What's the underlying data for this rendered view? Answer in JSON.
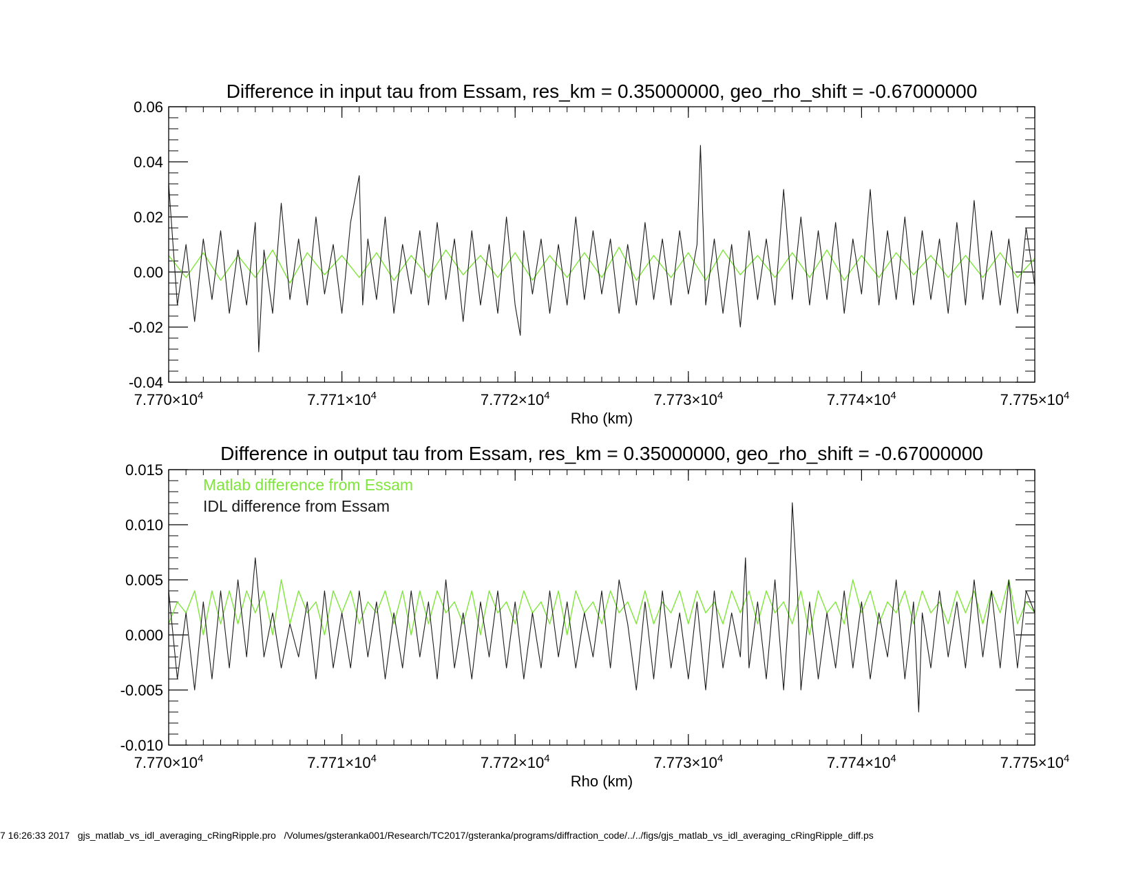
{
  "footer": "7 16:26:33 2017   gjs_matlab_vs_idl_averaging_cRingRipple.pro   /Volumes/gsteranka001/Research/TC2017/gsteranka/programs/diffraction_code/../../figs/gjs_matlab_vs_idl_averaging_cRingRipple_diff.ps",
  "colors": {
    "matlab": "#7ee639",
    "idl": "#1a1a1a",
    "axis": "#000000"
  },
  "chart_data": [
    {
      "type": "line",
      "title": "Difference in input tau from Essam, res_km = 0.35000000, geo_rho_shift = -0.67000000",
      "xlabel": "Rho (km)",
      "ylabel": "",
      "xlim": [
        77700,
        77750
      ],
      "ylim": [
        -0.04,
        0.06
      ],
      "xticks": [
        77700,
        77710,
        77720,
        77730,
        77740,
        77750
      ],
      "xtick_labels": [
        {
          "mant": "7.770×10",
          "exp": "4"
        },
        {
          "mant": "7.771×10",
          "exp": "4"
        },
        {
          "mant": "7.772×10",
          "exp": "4"
        },
        {
          "mant": "7.773×10",
          "exp": "4"
        },
        {
          "mant": "7.774×10",
          "exp": "4"
        },
        {
          "mant": "7.775×10",
          "exp": "4"
        }
      ],
      "yticks": [
        -0.04,
        -0.02,
        0.0,
        0.02,
        0.04,
        0.06
      ],
      "ytick_labels": [
        "-0.04",
        "-0.02",
        "0.00",
        "0.02",
        "0.04",
        "0.06"
      ],
      "legend": [],
      "series": [
        {
          "color_key": "idl",
          "x": [
            77700.0,
            77700.5,
            77701.0,
            77701.5,
            77702.0,
            77702.5,
            77703.0,
            77703.5,
            77704.0,
            77704.5,
            77705.0,
            77705.2,
            77705.5,
            77706.0,
            77706.5,
            77707.0,
            77707.5,
            77708.0,
            77708.5,
            77709.0,
            77709.5,
            77710.0,
            77710.5,
            77711.0,
            77711.2,
            77711.5,
            77712.0,
            77712.5,
            77713.0,
            77713.5,
            77714.0,
            77714.5,
            77715.0,
            77715.5,
            77716.0,
            77716.5,
            77717.0,
            77717.5,
            77718.0,
            77718.5,
            77719.0,
            77719.5,
            77720.0,
            77720.3,
            77720.5,
            77721.0,
            77721.5,
            77722.0,
            77722.5,
            77723.0,
            77723.5,
            77724.0,
            77724.5,
            77725.0,
            77725.5,
            77726.0,
            77726.5,
            77727.0,
            77727.5,
            77728.0,
            77728.5,
            77729.0,
            77729.5,
            77730.0,
            77730.5,
            77730.7,
            77731.0,
            77731.5,
            77732.0,
            77732.5,
            77733.0,
            77733.5,
            77734.0,
            77734.5,
            77735.0,
            77735.5,
            77736.0,
            77736.5,
            77737.0,
            77737.5,
            77738.0,
            77738.5,
            77739.0,
            77739.5,
            77740.0,
            77740.5,
            77741.0,
            77741.5,
            77742.0,
            77742.5,
            77743.0,
            77743.5,
            77744.0,
            77744.5,
            77745.0,
            77745.5,
            77746.0,
            77746.5,
            77747.0,
            77747.5,
            77748.0,
            77748.5,
            77749.0,
            77749.5,
            77750.0
          ],
          "y": [
            0.032,
            -0.012,
            0.01,
            -0.018,
            0.012,
            -0.01,
            0.015,
            -0.015,
            0.008,
            -0.012,
            0.018,
            -0.029,
            0.008,
            -0.015,
            0.025,
            -0.01,
            0.012,
            -0.012,
            0.02,
            -0.008,
            0.01,
            -0.015,
            0.018,
            0.035,
            -0.012,
            0.012,
            -0.01,
            0.02,
            -0.015,
            0.01,
            -0.008,
            0.015,
            -0.012,
            0.018,
            -0.01,
            0.012,
            -0.018,
            0.015,
            -0.012,
            0.01,
            -0.015,
            0.02,
            -0.012,
            -0.023,
            0.015,
            -0.008,
            0.012,
            -0.015,
            0.01,
            -0.012,
            0.02,
            -0.01,
            0.015,
            -0.008,
            0.012,
            -0.015,
            0.01,
            -0.012,
            0.018,
            -0.01,
            0.012,
            -0.012,
            0.015,
            -0.008,
            0.01,
            0.046,
            -0.012,
            0.012,
            -0.015,
            0.01,
            -0.02,
            0.015,
            -0.01,
            0.012,
            -0.012,
            0.03,
            -0.01,
            0.02,
            -0.012,
            0.015,
            -0.01,
            0.018,
            -0.015,
            0.012,
            -0.008,
            0.03,
            -0.012,
            0.015,
            -0.01,
            0.02,
            -0.012,
            0.015,
            -0.01,
            0.012,
            -0.015,
            0.018,
            -0.012,
            0.026,
            -0.01,
            0.015,
            -0.012,
            0.012,
            -0.015,
            0.016,
            -0.005
          ]
        },
        {
          "color_key": "matlab",
          "x": [
            77700.0,
            77701.0,
            77702.0,
            77703.0,
            77704.0,
            77705.0,
            77706.0,
            77707.0,
            77708.0,
            77709.0,
            77710.0,
            77711.0,
            77712.0,
            77713.0,
            77714.0,
            77715.0,
            77716.0,
            77717.0,
            77718.0,
            77719.0,
            77720.0,
            77721.0,
            77722.0,
            77723.0,
            77724.0,
            77725.0,
            77726.0,
            77727.0,
            77728.0,
            77729.0,
            77730.0,
            77731.0,
            77732.0,
            77733.0,
            77734.0,
            77735.0,
            77736.0,
            77737.0,
            77738.0,
            77739.0,
            77740.0,
            77741.0,
            77742.0,
            77743.0,
            77744.0,
            77745.0,
            77746.0,
            77747.0,
            77748.0,
            77749.0,
            77750.0
          ],
          "y": [
            0.006,
            -0.002,
            0.007,
            -0.003,
            0.006,
            -0.002,
            0.008,
            -0.004,
            0.007,
            -0.001,
            0.006,
            -0.002,
            0.007,
            -0.003,
            0.006,
            -0.002,
            0.008,
            -0.001,
            0.006,
            -0.002,
            0.007,
            -0.003,
            0.006,
            -0.002,
            0.007,
            -0.002,
            0.009,
            -0.003,
            0.006,
            -0.002,
            0.007,
            -0.003,
            0.008,
            -0.001,
            0.006,
            -0.002,
            0.007,
            -0.002,
            0.008,
            -0.003,
            0.006,
            -0.002,
            0.007,
            -0.001,
            0.006,
            -0.002,
            0.006,
            -0.002,
            0.007,
            -0.002,
            0.005
          ]
        }
      ]
    },
    {
      "type": "line",
      "title": "Difference in output tau from Essam, res_km = 0.35000000, geo_rho_shift = -0.67000000",
      "xlabel": "Rho (km)",
      "ylabel": "",
      "xlim": [
        77700,
        77750
      ],
      "ylim": [
        -0.01,
        0.015
      ],
      "xticks": [
        77700,
        77710,
        77720,
        77730,
        77740,
        77750
      ],
      "xtick_labels": [
        {
          "mant": "7.770×10",
          "exp": "4"
        },
        {
          "mant": "7.771×10",
          "exp": "4"
        },
        {
          "mant": "7.772×10",
          "exp": "4"
        },
        {
          "mant": "7.773×10",
          "exp": "4"
        },
        {
          "mant": "7.774×10",
          "exp": "4"
        },
        {
          "mant": "7.775×10",
          "exp": "4"
        }
      ],
      "yticks": [
        -0.01,
        -0.005,
        0.0,
        0.005,
        0.01,
        0.015
      ],
      "ytick_labels": [
        "-0.010",
        "-0.005",
        "0.000",
        "0.005",
        "0.010",
        "0.015"
      ],
      "legend": [
        {
          "label": "Matlab difference from Essam",
          "color_key": "matlab"
        },
        {
          "label": "IDL difference from Essam",
          "color_key": "idl"
        }
      ],
      "series": [
        {
          "color_key": "idl",
          "x": [
            77700.0,
            77700.5,
            77701.0,
            77701.5,
            77702.0,
            77702.5,
            77703.0,
            77703.5,
            77704.0,
            77704.5,
            77705.0,
            77705.5,
            77706.0,
            77706.5,
            77707.0,
            77707.5,
            77708.0,
            77708.5,
            77709.0,
            77709.5,
            77710.0,
            77710.5,
            77711.0,
            77711.5,
            77712.0,
            77712.5,
            77713.0,
            77713.5,
            77714.0,
            77714.5,
            77715.0,
            77715.5,
            77716.0,
            77716.5,
            77717.0,
            77717.5,
            77718.0,
            77718.5,
            77719.0,
            77719.5,
            77720.0,
            77720.5,
            77721.0,
            77721.5,
            77722.0,
            77722.5,
            77723.0,
            77723.5,
            77724.0,
            77724.5,
            77725.0,
            77725.5,
            77726.0,
            77726.5,
            77727.0,
            77727.5,
            77728.0,
            77728.5,
            77729.0,
            77729.5,
            77730.0,
            77730.5,
            77731.0,
            77731.5,
            77732.0,
            77732.5,
            77733.0,
            77733.3,
            77733.5,
            77734.0,
            77734.5,
            77735.0,
            77735.5,
            77735.8,
            77736.0,
            77736.3,
            77736.5,
            77737.0,
            77737.5,
            77738.0,
            77738.5,
            77739.0,
            77739.5,
            77740.0,
            77740.5,
            77741.0,
            77741.5,
            77742.0,
            77742.5,
            77743.0,
            77743.3,
            77743.5,
            77744.0,
            77744.5,
            77745.0,
            77745.5,
            77746.0,
            77746.5,
            77747.0,
            77747.5,
            77748.0,
            77748.5,
            77749.0,
            77749.5,
            77750.0
          ],
          "y": [
            0.004,
            -0.004,
            0.002,
            -0.005,
            0.003,
            -0.004,
            0.004,
            -0.003,
            0.005,
            -0.002,
            0.007,
            -0.002,
            0.002,
            -0.003,
            0.001,
            -0.002,
            0.003,
            -0.004,
            0.004,
            -0.003,
            0.002,
            -0.003,
            0.004,
            -0.002,
            0.003,
            -0.004,
            0.002,
            -0.003,
            0.004,
            -0.002,
            0.003,
            -0.004,
            0.005,
            -0.003,
            0.002,
            -0.004,
            0.003,
            -0.002,
            0.004,
            -0.003,
            0.003,
            -0.004,
            0.002,
            -0.003,
            0.004,
            -0.002,
            0.003,
            -0.003,
            0.002,
            -0.002,
            0.004,
            -0.003,
            0.005,
            0.001,
            -0.005,
            0.003,
            -0.004,
            0.004,
            -0.003,
            0.002,
            -0.004,
            0.003,
            -0.005,
            0.004,
            -0.003,
            0.002,
            -0.002,
            0.007,
            -0.003,
            0.003,
            -0.004,
            0.005,
            -0.005,
            0.002,
            0.012,
            0.004,
            -0.005,
            0.003,
            -0.004,
            0.002,
            -0.003,
            0.004,
            -0.003,
            0.003,
            -0.004,
            0.002,
            -0.002,
            0.005,
            -0.004,
            0.003,
            -0.007,
            0.002,
            -0.003,
            0.004,
            -0.002,
            0.003,
            -0.003,
            0.005,
            -0.002,
            0.004,
            -0.003,
            0.005,
            -0.003,
            0.004,
            0.002
          ]
        },
        {
          "color_key": "matlab",
          "x": [
            77700.0,
            77700.5,
            77701.0,
            77701.5,
            77702.0,
            77702.5,
            77703.0,
            77703.5,
            77704.0,
            77704.5,
            77705.0,
            77705.5,
            77706.0,
            77706.5,
            77707.0,
            77707.5,
            77708.0,
            77708.5,
            77709.0,
            77709.5,
            77710.0,
            77710.5,
            77711.0,
            77711.5,
            77712.0,
            77712.5,
            77713.0,
            77713.5,
            77714.0,
            77714.5,
            77715.0,
            77715.5,
            77716.0,
            77716.5,
            77717.0,
            77717.5,
            77718.0,
            77718.5,
            77719.0,
            77719.5,
            77720.0,
            77720.5,
            77721.0,
            77721.5,
            77722.0,
            77722.5,
            77723.0,
            77723.5,
            77724.0,
            77724.5,
            77725.0,
            77725.5,
            77726.0,
            77726.5,
            77727.0,
            77727.5,
            77728.0,
            77728.5,
            77729.0,
            77729.5,
            77730.0,
            77730.5,
            77731.0,
            77731.5,
            77732.0,
            77732.5,
            77733.0,
            77733.5,
            77734.0,
            77734.5,
            77735.0,
            77735.5,
            77736.0,
            77736.5,
            77737.0,
            77737.5,
            77738.0,
            77738.5,
            77739.0,
            77739.5,
            77740.0,
            77740.5,
            77741.0,
            77741.5,
            77742.0,
            77742.5,
            77743.0,
            77743.5,
            77744.0,
            77744.5,
            77745.0,
            77745.5,
            77746.0,
            77746.5,
            77747.0,
            77747.5,
            77748.0,
            77748.5,
            77749.0,
            77749.5,
            77750.0
          ],
          "y": [
            0.001,
            0.003,
            0.002,
            0.004,
            0.0,
            0.004,
            0.001,
            0.004,
            0.001,
            0.004,
            0.002,
            0.004,
            0.0,
            0.005,
            0.001,
            0.004,
            0.002,
            0.003,
            0.0,
            0.004,
            0.002,
            0.004,
            0.001,
            0.003,
            0.002,
            0.004,
            0.001,
            0.004,
            0.0,
            0.004,
            0.001,
            0.004,
            0.002,
            0.003,
            0.001,
            0.004,
            0.0,
            0.004,
            0.002,
            0.003,
            0.001,
            0.004,
            0.002,
            0.003,
            0.001,
            0.004,
            0.0,
            0.004,
            0.002,
            0.003,
            0.001,
            0.004,
            0.002,
            0.003,
            0.001,
            0.004,
            0.001,
            0.003,
            0.002,
            0.004,
            0.001,
            0.004,
            0.002,
            0.003,
            0.001,
            0.004,
            0.002,
            0.004,
            0.001,
            0.004,
            0.002,
            0.003,
            0.001,
            0.004,
            0.0,
            0.004,
            0.002,
            0.003,
            0.001,
            0.005,
            0.002,
            0.004,
            0.001,
            0.003,
            0.002,
            0.004,
            0.001,
            0.004,
            0.002,
            0.003,
            0.001,
            0.004,
            0.002,
            0.004,
            0.001,
            0.004,
            0.002,
            0.005,
            0.001,
            0.003,
            0.002
          ]
        }
      ]
    }
  ]
}
